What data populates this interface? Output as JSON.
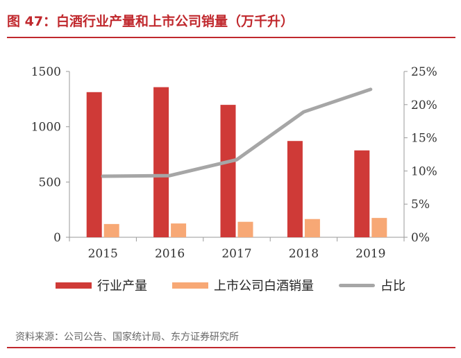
{
  "title": "图 47：白酒行业产量和上市公司销量（万千升）",
  "source": "资料来源：公司公告、国家统计局、东方证券研究所",
  "colors": {
    "accent": "#c0282d",
    "bar1": "#cf3a37",
    "bar2": "#f7a875",
    "line": "#a6a6a6"
  },
  "chart_data": {
    "type": "bar",
    "categories": [
      "2015",
      "2016",
      "2017",
      "2018",
      "2019"
    ],
    "series": [
      {
        "name": "行业产量",
        "kind": "bar",
        "axis": "left",
        "values": [
          1313,
          1358,
          1198,
          871,
          786
        ]
      },
      {
        "name": "上市公司白酒销量",
        "kind": "bar",
        "axis": "left",
        "values": [
          120,
          125,
          140,
          165,
          175
        ]
      },
      {
        "name": "占比",
        "kind": "line",
        "axis": "right",
        "values": [
          9.2,
          9.3,
          11.7,
          18.9,
          22.3
        ]
      }
    ],
    "ylim": [
      0,
      1500
    ],
    "yticks": [
      "0",
      "500",
      "1000",
      "1500"
    ],
    "y2lim": [
      0,
      25
    ],
    "y2ticks": [
      "0%",
      "5%",
      "10%",
      "15%",
      "20%",
      "25%"
    ],
    "legend_position": "bottom",
    "grid": false
  }
}
